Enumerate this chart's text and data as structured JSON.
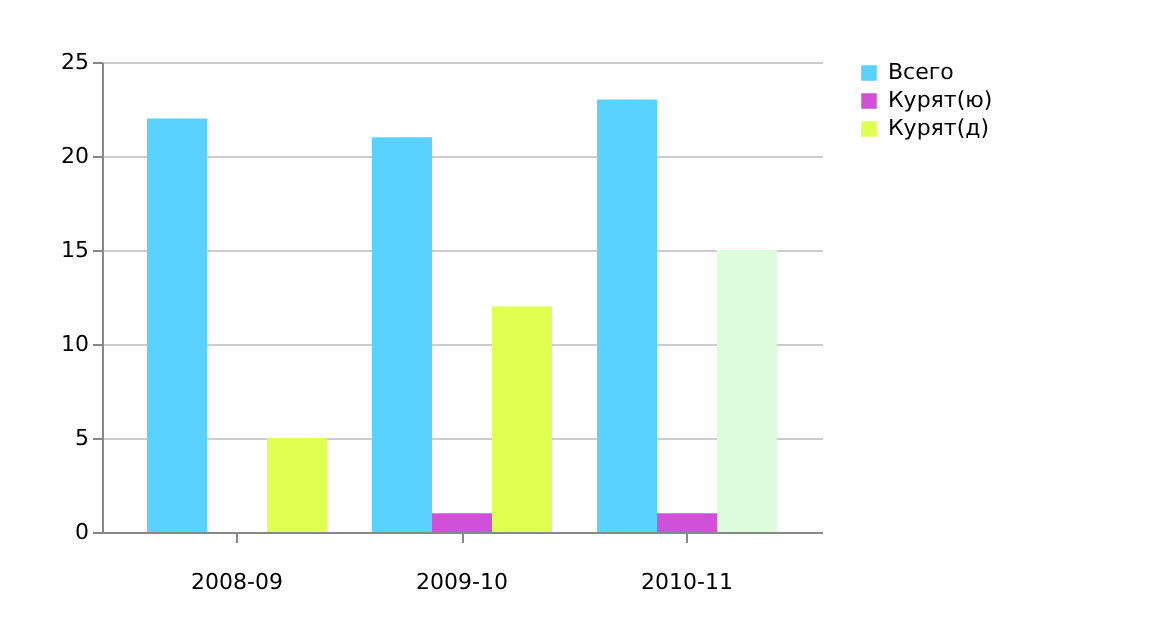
{
  "chart_data": {
    "type": "bar",
    "categories": [
      "2008-09",
      "2009-10",
      "2010-11"
    ],
    "series": [
      {
        "name": "Всего",
        "color": "#5ad2ff",
        "values": [
          22,
          21,
          23
        ]
      },
      {
        "name": "Курят(ю)",
        "color": "#d050d8",
        "values": [
          0,
          1,
          1
        ]
      },
      {
        "name": "Курят(д)",
        "color": "#e0ff50",
        "colors": [
          "#e0ff50",
          "#e0ff50",
          "#dcfcdc"
        ],
        "values": [
          5,
          12,
          15
        ]
      }
    ],
    "ylim": [
      0,
      25
    ],
    "yticks": [
      0,
      5,
      10,
      15,
      20,
      25
    ],
    "grid": "y",
    "legend": "right"
  }
}
